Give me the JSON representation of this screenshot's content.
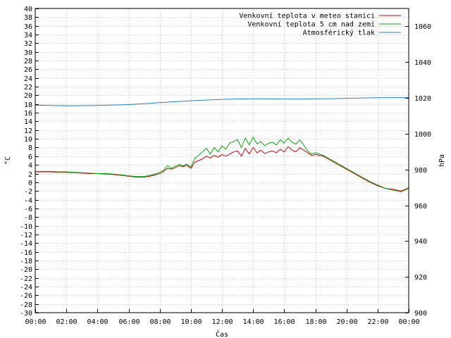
{
  "chart_data": {
    "type": "line",
    "xlabel": "Čas",
    "ylabel_left": "°C",
    "ylabel_right": "hPa",
    "x_ticks": [
      "00:00",
      "02:00",
      "04:00",
      "06:00",
      "08:00",
      "10:00",
      "12:00",
      "14:00",
      "16:00",
      "18:00",
      "20:00",
      "22:00",
      "00:00"
    ],
    "x_range_hours": [
      0,
      24
    ],
    "ylim_left": [
      -30,
      40
    ],
    "ylim_right": [
      900,
      1070
    ],
    "y_ticks_left": [
      40,
      38,
      36,
      34,
      32,
      30,
      28,
      26,
      24,
      22,
      20,
      18,
      16,
      14,
      12,
      10,
      8,
      6,
      4,
      2,
      0,
      -2,
      -4,
      -6,
      -8,
      -10,
      -12,
      -14,
      -16,
      -18,
      -20,
      -22,
      -24,
      -26,
      -28,
      -30
    ],
    "y_ticks_right": [
      1060,
      1040,
      1020,
      1000,
      980,
      960,
      940,
      920,
      900
    ],
    "grid": true,
    "legend_position": "top-right",
    "series": [
      {
        "name": "Venkovní teplota v meteo stanici",
        "color": "#cc0000",
        "axis": "left",
        "x": [
          0,
          0.5,
          1,
          1.5,
          2,
          2.5,
          3,
          3.5,
          4,
          4.5,
          5,
          5.5,
          6,
          6.5,
          7,
          7.5,
          8,
          8.25,
          8.5,
          8.75,
          9,
          9.25,
          9.5,
          9.75,
          10,
          10.25,
          10.5,
          10.75,
          11,
          11.25,
          11.5,
          11.75,
          12,
          12.25,
          12.5,
          12.75,
          13,
          13.25,
          13.5,
          13.75,
          14,
          14.25,
          14.5,
          14.75,
          15,
          15.25,
          15.5,
          15.75,
          16,
          16.25,
          16.5,
          16.75,
          17,
          17.25,
          17.5,
          17.75,
          18,
          18.5,
          19,
          19.5,
          20,
          20.5,
          21,
          21.5,
          22,
          22.5,
          23,
          23.5,
          24
        ],
        "y": [
          2.4,
          2.4,
          2.4,
          2.3,
          2.3,
          2.2,
          2.1,
          2.0,
          2.0,
          1.9,
          1.8,
          1.6,
          1.4,
          1.2,
          1.2,
          1.5,
          2.0,
          2.5,
          3.2,
          3.0,
          3.4,
          3.8,
          3.6,
          3.9,
          3.2,
          4.6,
          5.0,
          5.4,
          6.0,
          5.6,
          6.2,
          5.8,
          6.4,
          6.0,
          6.5,
          7.0,
          7.2,
          6.0,
          7.8,
          6.5,
          8.0,
          6.8,
          7.4,
          6.6,
          7.0,
          7.2,
          6.8,
          7.6,
          7.0,
          8.2,
          7.4,
          7.0,
          8.0,
          7.4,
          6.8,
          6.2,
          6.4,
          6.0,
          5.0,
          4.0,
          3.0,
          2.0,
          1.0,
          0.0,
          -0.8,
          -1.4,
          -1.6,
          -2.0,
          -1.3
        ]
      },
      {
        "name": "Venkovní teplota 5 cm nad zemí",
        "color": "#00aa00",
        "axis": "left",
        "x": [
          0,
          0.5,
          1,
          1.5,
          2,
          2.5,
          3,
          3.5,
          4,
          4.5,
          5,
          5.5,
          6,
          6.5,
          7,
          7.5,
          8,
          8.25,
          8.5,
          8.75,
          9,
          9.25,
          9.5,
          9.75,
          10,
          10.25,
          10.5,
          10.75,
          11,
          11.25,
          11.5,
          11.75,
          12,
          12.25,
          12.5,
          12.75,
          13,
          13.25,
          13.5,
          13.75,
          14,
          14.25,
          14.5,
          14.75,
          15,
          15.25,
          15.5,
          15.75,
          16,
          16.25,
          16.5,
          16.75,
          17,
          17.25,
          17.5,
          17.75,
          18,
          18.5,
          19,
          19.5,
          20,
          20.5,
          21,
          21.5,
          22,
          22.5,
          23,
          23.5,
          24
        ],
        "y": [
          2.5,
          2.5,
          2.5,
          2.4,
          2.4,
          2.3,
          2.2,
          2.1,
          2.0,
          2.0,
          1.9,
          1.7,
          1.5,
          1.3,
          1.3,
          1.7,
          2.3,
          2.8,
          3.8,
          3.2,
          3.7,
          4.1,
          3.8,
          4.2,
          3.5,
          5.5,
          6.2,
          7.0,
          7.8,
          6.5,
          8.0,
          7.0,
          8.4,
          7.6,
          9.0,
          9.4,
          9.8,
          8.0,
          10.2,
          8.6,
          10.4,
          8.8,
          9.4,
          8.4,
          9.0,
          9.2,
          8.6,
          9.8,
          9.0,
          10.2,
          9.2,
          8.8,
          9.8,
          8.6,
          7.2,
          6.5,
          6.8,
          6.2,
          5.2,
          4.2,
          3.2,
          2.2,
          1.2,
          0.2,
          -0.6,
          -1.4,
          -1.8,
          -2.2,
          -1.4
        ]
      },
      {
        "name": "Atmosférický tlak",
        "color": "#1e7fd4",
        "axis": "right",
        "x": [
          0,
          2,
          4,
          6,
          7,
          8,
          9,
          10,
          11,
          12,
          13,
          14,
          15,
          16,
          17,
          18,
          19,
          20,
          21,
          22,
          23,
          24
        ],
        "y": [
          1016,
          1015.6,
          1015.8,
          1016.3,
          1016.8,
          1017.4,
          1017.9,
          1018.4,
          1018.8,
          1019.2,
          1019.4,
          1019.5,
          1019.5,
          1019.3,
          1019.3,
          1019.5,
          1019.6,
          1019.8,
          1020.0,
          1020.1,
          1020.2,
          1020.2
        ]
      }
    ]
  }
}
